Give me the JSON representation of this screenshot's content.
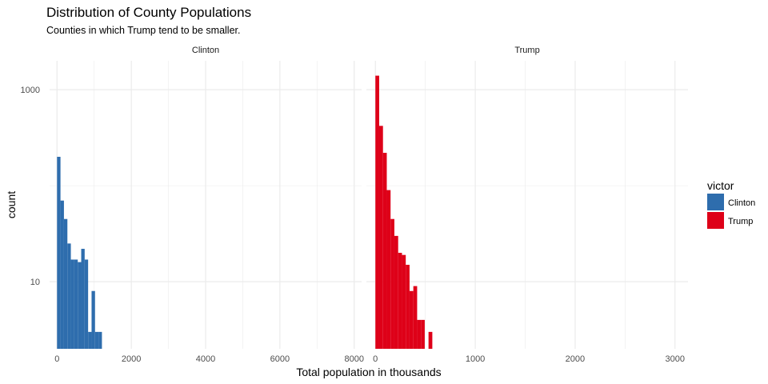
{
  "chart": {
    "title": "Distribution of County Populations",
    "subtitle": "Counties in which Trump tend to be smaller."
  },
  "colors": {
    "Clinton": "#2e6dad",
    "Trump": "#de0018",
    "grid": "#ebebeb"
  },
  "chart_data": {
    "type": "bar",
    "title": "Distribution of County Populations",
    "subtitle": "Counties in which Trump tend to be smaller.",
    "xlabel": "Total population in thousands",
    "ylabel": "count",
    "yscale": "log10",
    "ylim": [
      2,
      2000
    ],
    "y_ticks": [
      10,
      1000
    ],
    "y_tick_labels": [
      "10",
      "1000"
    ],
    "grid": true,
    "legend": {
      "title": "victor",
      "position": "right",
      "entries": [
        "Clinton",
        "Trump"
      ]
    },
    "facets": [
      {
        "name": "Clinton",
        "xlim": [
          -200,
          8200
        ],
        "x_ticks": [
          0,
          2000,
          4000,
          6000,
          8000
        ],
        "x_tick_labels": [
          "0",
          "2000",
          "4000",
          "6000",
          "8000"
        ],
        "bin_width": 93,
        "bins": [
          {
            "x": 0,
            "count": 200
          },
          {
            "x": 93,
            "count": 70
          },
          {
            "x": 186,
            "count": 45
          },
          {
            "x": 279,
            "count": 25
          },
          {
            "x": 372,
            "count": 17
          },
          {
            "x": 465,
            "count": 17
          },
          {
            "x": 558,
            "count": 16
          },
          {
            "x": 651,
            "count": 22
          },
          {
            "x": 744,
            "count": 17
          },
          {
            "x": 837,
            "count": 3
          },
          {
            "x": 930,
            "count": 8
          },
          {
            "x": 1023,
            "count": 3
          },
          {
            "x": 1116,
            "count": 3
          },
          {
            "x": 1302,
            "count": 2
          },
          {
            "x": 1395,
            "count": 2
          },
          {
            "x": 1488,
            "count": 2
          },
          {
            "x": 1860,
            "count": 2
          }
        ]
      },
      {
        "name": "Trump",
        "xlim": [
          -90,
          3130
        ],
        "x_ticks": [
          0,
          1000,
          2000,
          3000
        ],
        "x_tick_labels": [
          "0",
          "1000",
          "2000",
          "3000"
        ],
        "bin_width": 38,
        "bins": [
          {
            "x": 0,
            "count": 1400
          },
          {
            "x": 38,
            "count": 420
          },
          {
            "x": 76,
            "count": 220
          },
          {
            "x": 114,
            "count": 90
          },
          {
            "x": 152,
            "count": 45
          },
          {
            "x": 190,
            "count": 30
          },
          {
            "x": 228,
            "count": 20
          },
          {
            "x": 266,
            "count": 19
          },
          {
            "x": 304,
            "count": 15
          },
          {
            "x": 342,
            "count": 8
          },
          {
            "x": 380,
            "count": 9
          },
          {
            "x": 418,
            "count": 4
          },
          {
            "x": 456,
            "count": 4
          },
          {
            "x": 532,
            "count": 3
          },
          {
            "x": 608,
            "count": 2
          },
          {
            "x": 646,
            "count": 2
          }
        ]
      }
    ]
  }
}
